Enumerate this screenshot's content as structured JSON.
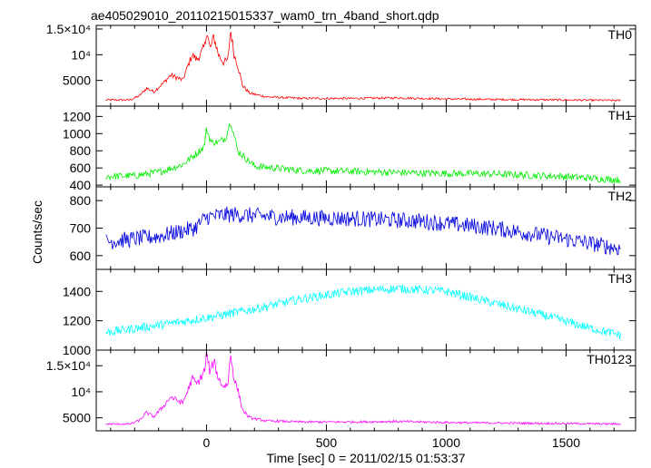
{
  "title": "ae405029010_20110215015337_wam0_trn_4band_short.qdp",
  "ylabel": "Counts/sec",
  "xlabel": "Time [sec] 0 = 2011/02/15 01:53:37",
  "x_ticks": [
    "0",
    "500",
    "1000",
    "1500"
  ],
  "chart_data": [
    {
      "type": "line",
      "name": "TH0",
      "color": "#ff0000",
      "xlim": [
        -460,
        1790
      ],
      "ylim": [
        0,
        15700
      ],
      "y_ticks": [
        {
          "v": 15000,
          "label": "1.5×10⁴"
        },
        {
          "v": 10000,
          "label": "10⁴"
        },
        {
          "v": 5000,
          "label": "5000"
        }
      ],
      "x": [
        -420,
        -320,
        -280,
        -250,
        -220,
        -180,
        -150,
        -120,
        -100,
        -80,
        -60,
        -40,
        -20,
        -5,
        0,
        15,
        30,
        50,
        70,
        90,
        100,
        115,
        130,
        150,
        180,
        250,
        400,
        600,
        800,
        1000,
        1200,
        1500,
        1730
      ],
      "y": [
        1200,
        1200,
        2000,
        3500,
        2800,
        4500,
        6000,
        5500,
        5000,
        7500,
        10000,
        9000,
        10500,
        12000,
        15000,
        11000,
        13500,
        10000,
        8500,
        9000,
        15000,
        10000,
        8000,
        4000,
        2500,
        1800,
        1500,
        1500,
        1600,
        1400,
        1300,
        1200,
        1100
      ]
    },
    {
      "type": "line",
      "name": "TH1",
      "color": "#00ee00",
      "xlim": [
        -460,
        1790
      ],
      "ylim": [
        380,
        1320
      ],
      "y_ticks": [
        {
          "v": 1200,
          "label": "1200"
        },
        {
          "v": 1000,
          "label": "1000"
        },
        {
          "v": 800,
          "label": "800"
        },
        {
          "v": 600,
          "label": "600"
        },
        {
          "v": 400,
          "label": "400"
        }
      ],
      "x": [
        -420,
        -300,
        -200,
        -100,
        -50,
        -10,
        0,
        20,
        50,
        80,
        100,
        130,
        200,
        400,
        600,
        900,
        1200,
        1500,
        1730
      ],
      "y": [
        500,
        510,
        550,
        640,
        750,
        850,
        1050,
        900,
        900,
        950,
        1150,
        800,
        620,
        570,
        560,
        540,
        530,
        500,
        460
      ]
    },
    {
      "type": "line",
      "name": "TH2",
      "color": "#0000dd",
      "xlim": [
        -460,
        1790
      ],
      "ylim": [
        550,
        850
      ],
      "y_ticks": [
        {
          "v": 800,
          "label": "800"
        },
        {
          "v": 700,
          "label": "700"
        },
        {
          "v": 600,
          "label": "600"
        }
      ],
      "x": [
        -420,
        -200,
        -50,
        0,
        100,
        300,
        600,
        900,
        1200,
        1500,
        1730
      ],
      "y": [
        650,
        670,
        700,
        740,
        750,
        740,
        735,
        725,
        700,
        660,
        625
      ]
    },
    {
      "type": "line",
      "name": "TH3",
      "color": "#00ffff",
      "xlim": [
        -460,
        1790
      ],
      "ylim": [
        1000,
        1550
      ],
      "y_ticks": [
        {
          "v": 1400,
          "label": "1400"
        },
        {
          "v": 1200,
          "label": "1200"
        },
        {
          "v": 1000,
          "label": "1000"
        }
      ],
      "x": [
        -420,
        -200,
        0,
        200,
        400,
        600,
        800,
        1000,
        1200,
        1400,
        1600,
        1730
      ],
      "y": [
        1120,
        1170,
        1220,
        1280,
        1350,
        1400,
        1420,
        1400,
        1320,
        1240,
        1150,
        1100
      ]
    },
    {
      "type": "line",
      "name": "TH0123",
      "color": "#ff00ff",
      "xlim": [
        -460,
        1790
      ],
      "ylim": [
        2500,
        18000
      ],
      "y_ticks": [
        {
          "v": 15000,
          "label": "1.5×10⁴"
        },
        {
          "v": 10000,
          "label": "10⁴"
        },
        {
          "v": 5000,
          "label": "5000"
        }
      ],
      "x": [
        -420,
        -320,
        -280,
        -250,
        -220,
        -180,
        -150,
        -120,
        -100,
        -80,
        -60,
        -40,
        -20,
        -5,
        0,
        15,
        30,
        50,
        70,
        90,
        100,
        115,
        130,
        150,
        180,
        250,
        400,
        600,
        800,
        1000,
        1200,
        1500,
        1730
      ],
      "y": [
        3800,
        3800,
        4500,
        6000,
        5200,
        7200,
        9000,
        8300,
        7800,
        10000,
        12500,
        11500,
        13000,
        14500,
        17500,
        13500,
        16000,
        12500,
        11000,
        11500,
        17500,
        12500,
        10500,
        6500,
        5000,
        4400,
        4200,
        4200,
        4300,
        4100,
        4000,
        3900,
        3800
      ]
    }
  ]
}
